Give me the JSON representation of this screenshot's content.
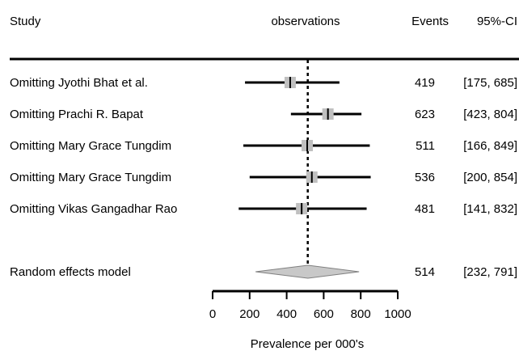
{
  "chart_data": {
    "type": "forest",
    "columns": {
      "study": "Study",
      "observations": "observations",
      "events": "Events",
      "ci": "95%-CI"
    },
    "rows": [
      {
        "label": "Omitting Jyothi Bhat et al.",
        "estimate": 419,
        "lower": 175,
        "upper": 685,
        "events_text": "419",
        "ci_text": "[175, 685]"
      },
      {
        "label": "Omitting Prachi R. Bapat",
        "estimate": 623,
        "lower": 423,
        "upper": 804,
        "events_text": "623",
        "ci_text": "[423, 804]"
      },
      {
        "label": "Omitting Mary Grace Tungdim",
        "estimate": 511,
        "lower": 166,
        "upper": 849,
        "events_text": "511",
        "ci_text": "[166, 849]"
      },
      {
        "label": "Omitting Mary Grace Tungdim",
        "estimate": 536,
        "lower": 200,
        "upper": 854,
        "events_text": "536",
        "ci_text": "[200, 854]"
      },
      {
        "label": "Omitting Vikas Gangadhar Rao",
        "estimate": 481,
        "lower": 141,
        "upper": 832,
        "events_text": "481",
        "ci_text": "[141, 832]"
      }
    ],
    "summary": {
      "label": "Random effects model",
      "estimate": 514,
      "lower": 232,
      "upper": 791,
      "events_text": "514",
      "ci_text": "[232, 791]"
    },
    "reference_line": 514,
    "x_axis": {
      "range": [
        0,
        1000
      ],
      "ticks": [
        0,
        200,
        400,
        600,
        800,
        1000
      ],
      "label": "Prevalence per 000's"
    },
    "colors": {
      "ink": "#000000",
      "marker": "#c0c0c0",
      "diamond": "#c8c8c8",
      "diamond_stroke": "#808080"
    }
  }
}
